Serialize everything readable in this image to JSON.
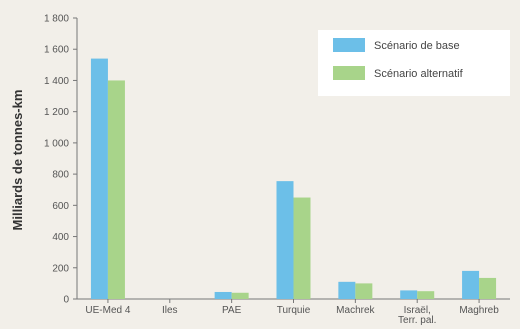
{
  "chart_data": {
    "type": "bar",
    "title": "",
    "xlabel": "",
    "ylabel": "Milliards de tonnes-km",
    "ylim": [
      0,
      1800
    ],
    "yticks": [
      0,
      200,
      400,
      600,
      800,
      1000,
      1200,
      1400,
      1600,
      1800
    ],
    "ytick_labels": [
      "0",
      "200",
      "400",
      "600",
      "800",
      "1 000",
      "1 200",
      "1 400",
      "1 600",
      "1 800"
    ],
    "categories": [
      "UE-Med 4",
      "Iles",
      "PAE",
      "Turquie",
      "Machrek",
      "Israël, Terr. pal.",
      "Maghreb"
    ],
    "category_lines": [
      [
        "UE-Med 4"
      ],
      [
        "Iles"
      ],
      [
        "PAE"
      ],
      [
        "Turquie"
      ],
      [
        "Machrek"
      ],
      [
        "Israël,",
        "Terr. pal."
      ],
      [
        "Maghreb"
      ]
    ],
    "series": [
      {
        "name": "Scénario de base",
        "color": "#6cbfe8",
        "values": [
          1540,
          0,
          45,
          755,
          110,
          55,
          180
        ]
      },
      {
        "name": "Scénario alternatif",
        "color": "#a8d48a",
        "values": [
          1400,
          0,
          40,
          650,
          100,
          50,
          135
        ]
      }
    ],
    "legend_position": "top-right",
    "grid": false
  }
}
